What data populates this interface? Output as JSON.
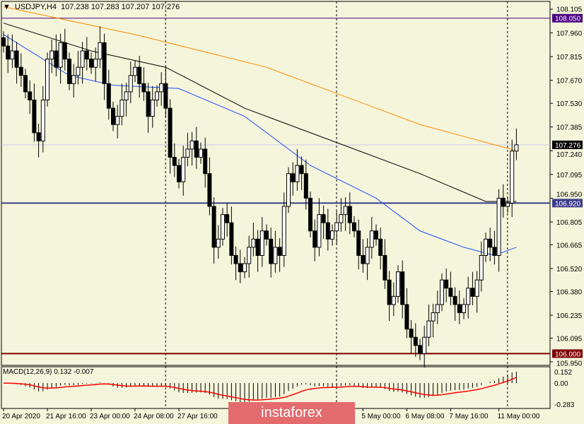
{
  "header": {
    "symbol": "USDJPY,H4",
    "ohlc": "107.238 107.283 107.207 107.276"
  },
  "macd_label": "MACD(12,26,9) 0.132 -0.007",
  "watermark": "instaforex",
  "colors": {
    "bg": "#f5f5dc",
    "orange_ma": "#ff8c00",
    "black_ma": "#000000",
    "blue_ma": "#1e4bff",
    "line_108050": "#4b0082",
    "line_106920": "#2a2a8a",
    "line_106000": "#800000",
    "macd_signal": "#ff0000"
  },
  "chart_data": {
    "type": "candlestick",
    "price_ticks": [
      "108.105",
      "107.960",
      "107.815",
      "107.670",
      "107.530",
      "107.385",
      "107.240",
      "107.095",
      "106.950",
      "106.805",
      "106.665",
      "106.520",
      "106.380",
      "106.235",
      "106.095",
      "105.950"
    ],
    "price_range": [
      105.95,
      108.105
    ],
    "levels": [
      {
        "value": 108.05,
        "label": "108.050",
        "color": "#4b0082"
      },
      {
        "value": 106.92,
        "label": "106.920",
        "color": "#3c3c8c"
      },
      {
        "value": 106.0,
        "label": "106.000",
        "color": "#800000"
      },
      {
        "value": 107.276,
        "label": "107.276",
        "color": "#000000"
      }
    ],
    "macd_ticks": [
      "0.152",
      "0.00",
      "-0.283"
    ],
    "macd_range": [
      -0.283,
      0.152
    ],
    "time_labels": [
      {
        "i": 0,
        "label": "20 Apr 2020"
      },
      {
        "i": 10,
        "label": "21 Apr 16:00"
      },
      {
        "i": 20,
        "label": "23 Apr 00:00"
      },
      {
        "i": 30,
        "label": "24 Apr 08:00"
      },
      {
        "i": 40,
        "label": "27 Apr 16:00"
      },
      {
        "i": 82,
        "label": "5 May 00:00"
      },
      {
        "i": 92,
        "label": "6 May 08:00"
      },
      {
        "i": 102,
        "label": "7 May 16:00"
      },
      {
        "i": 113,
        "label": "11 May 00:00"
      }
    ],
    "separators": [
      36,
      75,
      114
    ],
    "closes": [
      107.88,
      107.8,
      107.85,
      107.75,
      107.7,
      107.6,
      107.55,
      107.35,
      107.3,
      107.55,
      107.8,
      107.85,
      107.75,
      107.9,
      107.8,
      107.65,
      107.7,
      107.75,
      107.85,
      107.8,
      107.75,
      107.8,
      107.9,
      107.65,
      107.5,
      107.4,
      107.45,
      107.55,
      107.6,
      107.7,
      107.75,
      107.65,
      107.6,
      107.45,
      107.55,
      107.6,
      107.65,
      107.5,
      107.2,
      107.15,
      107.05,
      107.2,
      107.25,
      107.3,
      107.2,
      107.25,
      107.1,
      106.9,
      106.65,
      106.7,
      106.85,
      106.8,
      106.6,
      106.55,
      106.5,
      106.55,
      106.65,
      106.7,
      106.6,
      106.75,
      106.7,
      106.55,
      106.65,
      106.6,
      106.9,
      107.1,
      107.05,
      107.15,
      107.1,
      106.95,
      106.75,
      106.65,
      106.85,
      106.8,
      106.7,
      106.75,
      106.8,
      106.85,
      106.9,
      106.8,
      106.75,
      106.6,
      106.55,
      106.65,
      106.75,
      106.7,
      106.6,
      106.45,
      106.3,
      106.35,
      106.5,
      106.3,
      106.15,
      106.1,
      106.05,
      106.0,
      106.1,
      106.2,
      106.25,
      106.3,
      106.45,
      106.4,
      106.35,
      106.3,
      106.25,
      106.3,
      106.4,
      106.35,
      106.45,
      106.6,
      106.7,
      106.65,
      106.6,
      106.95,
      106.9,
      106.92,
      107.238,
      107.276
    ],
    "ma_orange": [
      [
        0,
        108.12
      ],
      [
        30,
        107.95
      ],
      [
        60,
        107.75
      ],
      [
        75,
        107.6
      ],
      [
        95,
        107.4
      ],
      [
        117,
        107.24
      ]
    ],
    "ma_black": [
      [
        0,
        108.02
      ],
      [
        20,
        107.85
      ],
      [
        37,
        107.75
      ],
      [
        55,
        107.5
      ],
      [
        75,
        107.3
      ],
      [
        95,
        107.1
      ],
      [
        110,
        106.93
      ],
      [
        117,
        106.93
      ]
    ],
    "ma_blue": [
      [
        0,
        107.95
      ],
      [
        15,
        107.7
      ],
      [
        25,
        107.64
      ],
      [
        40,
        107.62
      ],
      [
        55,
        107.45
      ],
      [
        70,
        107.15
      ],
      [
        85,
        106.95
      ],
      [
        95,
        106.75
      ],
      [
        105,
        106.65
      ],
      [
        112,
        106.6
      ],
      [
        117,
        106.65
      ]
    ]
  }
}
